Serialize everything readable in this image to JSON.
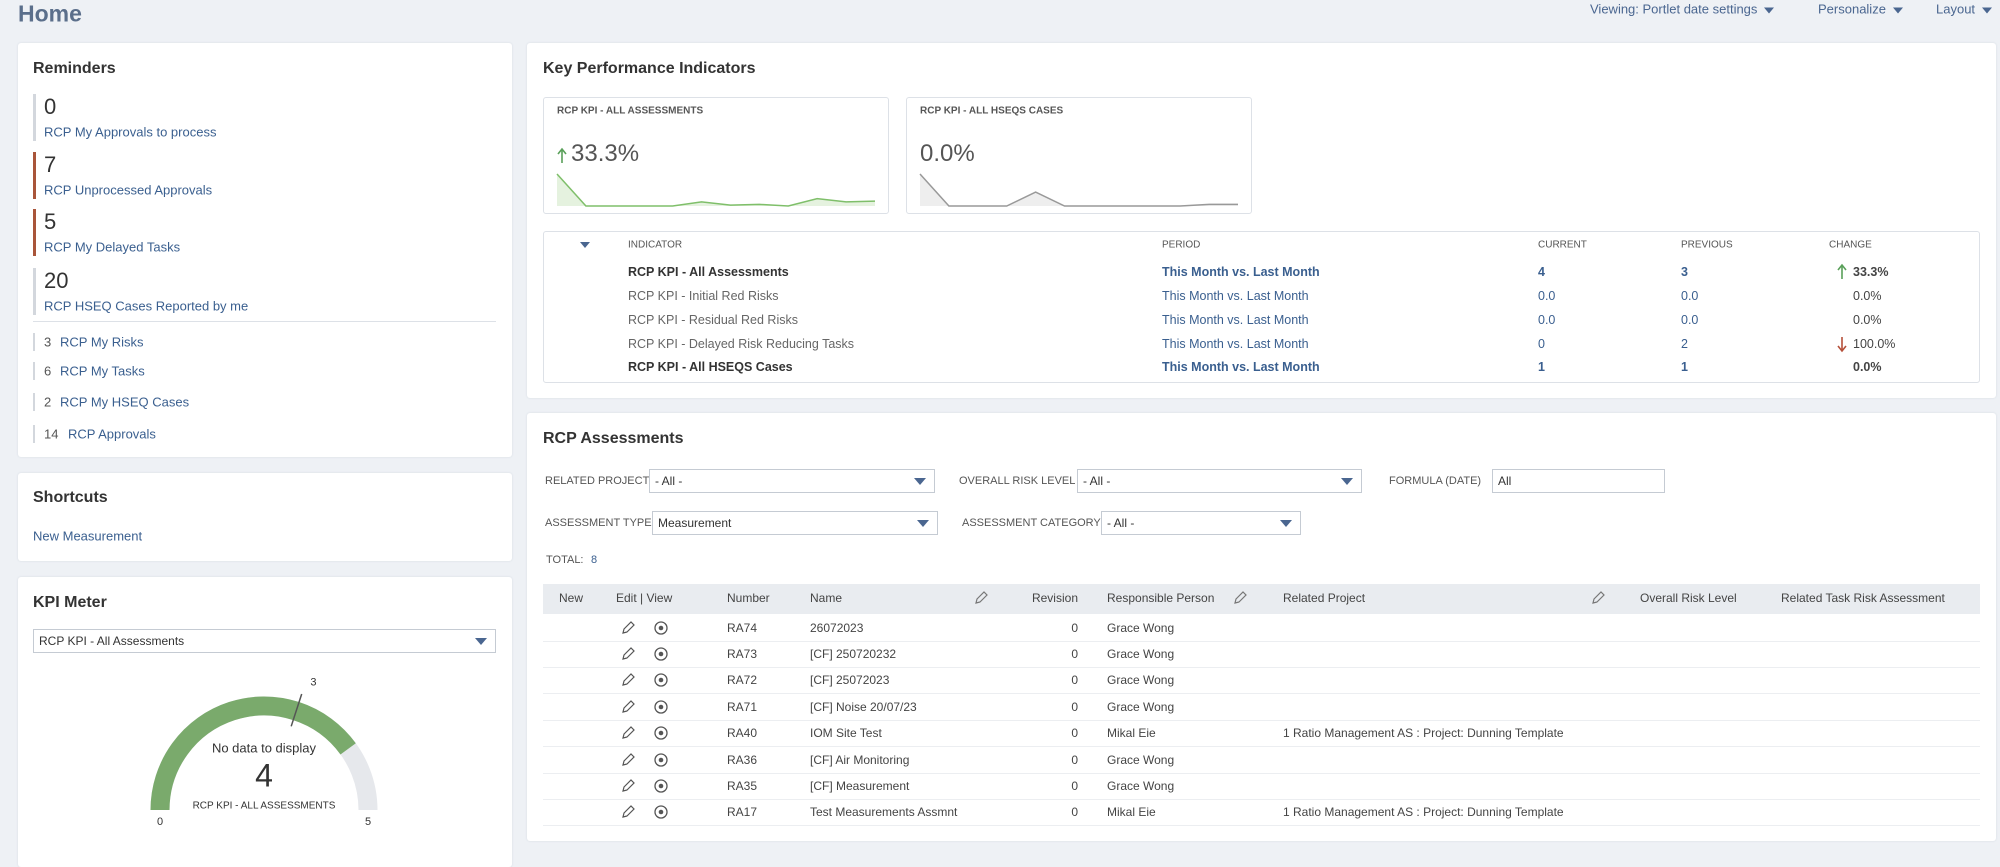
{
  "header": {
    "title": "Home",
    "menu": [
      "Viewing: Portlet date settings",
      "Personalize",
      "Layout"
    ]
  },
  "reminders": {
    "title": "Reminders",
    "items": [
      {
        "count": 0,
        "label": "RCP My Approvals to process",
        "color": "#d3d7dd"
      },
      {
        "count": 7,
        "label": "RCP Unprocessed Approvals",
        "color": "#a9553a"
      },
      {
        "count": 5,
        "label": "RCP My Delayed Tasks",
        "color": "#a9553a"
      },
      {
        "count": 20,
        "label": "RCP HSEQ Cases Reported by me",
        "color": "#d3d7dd"
      }
    ],
    "links": [
      {
        "count": 3,
        "label": "RCP My Risks"
      },
      {
        "count": 6,
        "label": "RCP My Tasks"
      },
      {
        "count": 2,
        "label": "RCP My HSEQ Cases"
      },
      {
        "count": 14,
        "label": "RCP Approvals"
      }
    ]
  },
  "shortcuts": {
    "title": "Shortcuts",
    "links": [
      "New Measurement"
    ]
  },
  "kpi_meter": {
    "title": "KPI Meter",
    "selected": "RCP KPI - All Assessments",
    "no_data": "No data to display",
    "value": 4,
    "min": 0,
    "max": 5,
    "marker": 3,
    "caption": "RCP KPI - ALL ASSESSMENTS"
  },
  "kpi": {
    "title": "Key Performance Indicators",
    "cards": [
      {
        "title": "RCP KPI - ALL ASSESSMENTS",
        "value": "33.3%",
        "trend": "up",
        "sparkline": [
          4,
          0.1,
          0.1,
          0.1,
          0.1,
          0.6,
          0.2,
          0.3,
          0.1,
          1,
          0.6,
          0.7
        ]
      },
      {
        "title": "RCP KPI - ALL HSEQS CASES",
        "value": "0.0%",
        "sparkline": [
          4,
          0.1,
          0.1,
          0.1,
          1.8,
          0.1,
          0.1,
          0.1,
          0.1,
          0.1,
          0.3,
          0.3
        ]
      }
    ],
    "table": {
      "columns": [
        "INDICATOR",
        "PERIOD",
        "CURRENT",
        "PREVIOUS",
        "CHANGE"
      ],
      "rows": [
        {
          "cells": [
            "RCP KPI - All Assessments",
            "This Month vs. Last Month",
            "4",
            "3",
            "33.3%"
          ],
          "bold": true,
          "trend": "up"
        },
        {
          "cells": [
            "RCP KPI - Initial Red Risks",
            "This Month vs. Last Month",
            "0.0",
            "0.0",
            "0.0%"
          ]
        },
        {
          "cells": [
            "RCP KPI - Residual Red Risks",
            "This Month vs. Last Month",
            "0.0",
            "0.0",
            "0.0%"
          ]
        },
        {
          "cells": [
            "RCP KPI - Delayed Risk Reducing Tasks",
            "This Month vs. Last Month",
            "0",
            "2",
            "100.0%"
          ],
          "trend": "down"
        },
        {
          "cells": [
            "RCP KPI - All HSEQS Cases",
            "This Month vs. Last Month",
            "1",
            "1",
            "0.0%"
          ],
          "bold": true
        }
      ]
    }
  },
  "assessments": {
    "title": "RCP Assessments",
    "filters": [
      {
        "label": "RELATED PROJECT",
        "value": "- All -"
      },
      {
        "label": "OVERALL RISK LEVEL",
        "value": "- All -"
      },
      {
        "label": "FORMULA (DATE)",
        "value": "All",
        "control": "input"
      },
      {
        "label": "ASSESSMENT TYPE",
        "value": "Measurement"
      },
      {
        "label": "ASSESSMENT CATEGORY",
        "value": "- All -"
      }
    ],
    "total_label": "TOTAL:",
    "total": 8,
    "columns": [
      "New",
      "Edit | View",
      "Number",
      "Name",
      "Revision",
      "Responsible Person",
      "Related Project",
      "Overall Risk Level",
      "Related Task Risk Assessment"
    ],
    "rows": [
      [
        "RA74",
        "26072023",
        0,
        "Grace Wong",
        null
      ],
      [
        "RA73",
        "[CF] 250720232",
        0,
        "Grace Wong",
        null
      ],
      [
        "RA72",
        "[CF] 25072023",
        0,
        "Grace Wong",
        null
      ],
      [
        "RA71",
        "[CF] Noise 20/07/23",
        0,
        "Grace Wong",
        null
      ],
      [
        "RA40",
        "IOM Site Test",
        0,
        "Mikal Eie",
        "1 Ratio Management AS : Project: Dunning Template"
      ],
      [
        "RA36",
        "[CF] Air Monitoring",
        0,
        "Grace Wong",
        null
      ],
      [
        "RA35",
        "[CF] Measurement",
        0,
        "Grace Wong",
        null
      ],
      [
        "RA17",
        "Test Measurements Assmnt",
        0,
        "Mikal Eie",
        "1 Ratio Management AS : Project: Dunning Template"
      ]
    ]
  }
}
